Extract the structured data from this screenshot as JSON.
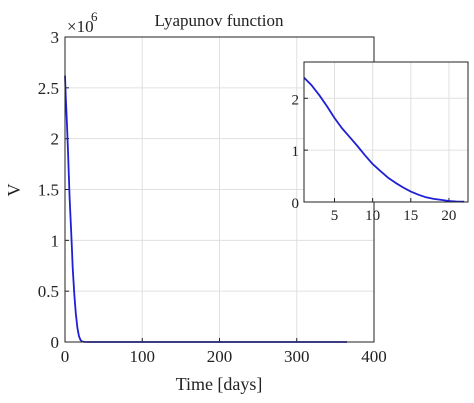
{
  "chart_data": [
    {
      "type": "line",
      "title": "Lyapunov function",
      "xlabel": "Time [days]",
      "ylabel": "V",
      "y_multiplier": "×10",
      "y_exponent": "6",
      "xlim": [
        0,
        400
      ],
      "ylim": [
        0,
        3
      ],
      "xticks": [
        0,
        100,
        200,
        300,
        400
      ],
      "yticks": [
        0,
        0.5,
        1,
        1.5,
        2,
        2.5,
        3
      ],
      "xtick_labels": [
        "0",
        "100",
        "200",
        "300",
        "400"
      ],
      "ytick_labels": [
        "0",
        "0.5",
        "1",
        "1.5",
        "2",
        "2.5",
        "3"
      ],
      "grid": true,
      "series": [
        {
          "color": "#1f1fd6",
          "x": [
            0,
            1,
            2,
            3,
            4,
            5,
            6,
            7,
            8,
            9,
            10,
            12,
            14,
            16,
            18,
            20,
            22,
            25,
            30,
            50,
            100,
            200,
            300,
            365
          ],
          "y": [
            2.62,
            2.4,
            2.25,
            2.06,
            1.85,
            1.62,
            1.42,
            1.25,
            1.08,
            0.9,
            0.73,
            0.47,
            0.28,
            0.14,
            0.06,
            0.02,
            0.005,
            0.001,
            0,
            0,
            0,
            0,
            0,
            0
          ]
        }
      ]
    },
    {
      "type": "line",
      "title": "",
      "xlim": [
        1,
        22.5
      ],
      "ylim": [
        0,
        2.7
      ],
      "xticks": [
        5,
        10,
        15,
        20
      ],
      "yticks": [
        0,
        1,
        2
      ],
      "xtick_labels": [
        "5",
        "10",
        "15",
        "20"
      ],
      "ytick_labels": [
        "0",
        "1",
        "2"
      ],
      "grid": true,
      "series": [
        {
          "color": "#1f1fd6",
          "x": [
            1,
            2,
            3,
            4,
            5,
            6,
            7,
            8,
            9,
            10,
            11,
            12,
            13,
            14,
            15,
            16,
            17,
            18,
            19,
            20,
            21,
            22
          ],
          "y": [
            2.4,
            2.25,
            2.06,
            1.85,
            1.62,
            1.42,
            1.25,
            1.08,
            0.9,
            0.73,
            0.6,
            0.47,
            0.37,
            0.28,
            0.2,
            0.14,
            0.09,
            0.06,
            0.04,
            0.02,
            0.01,
            0.005
          ]
        }
      ]
    }
  ]
}
